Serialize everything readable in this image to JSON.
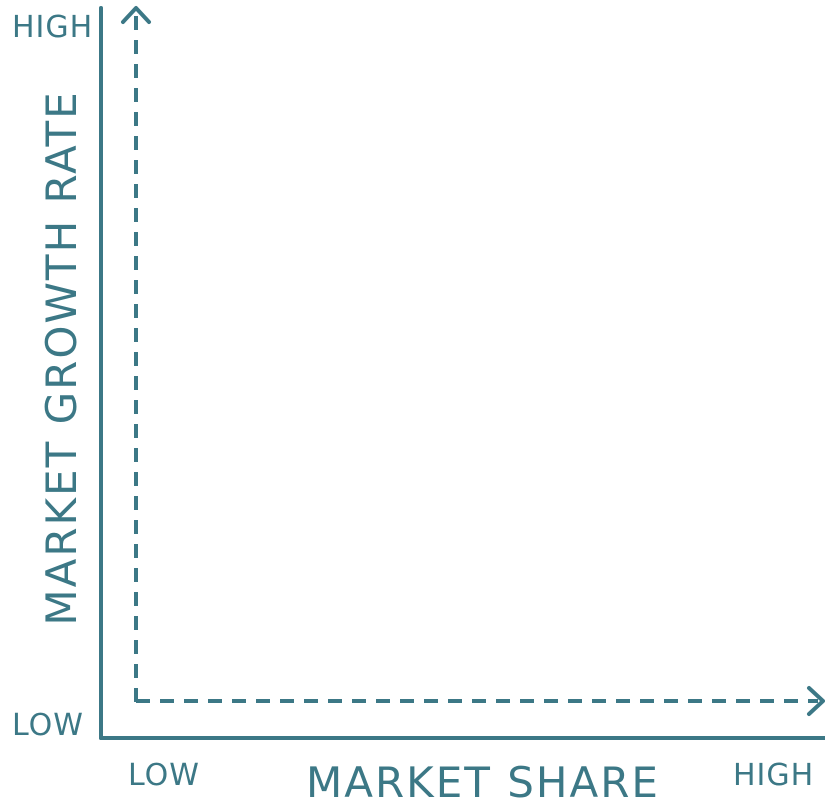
{
  "diagram": {
    "y_axis": {
      "title": "MARKET GROWTH RATE",
      "high_label": "HIGH",
      "low_label": "LOW"
    },
    "x_axis": {
      "title": "MARKET SHARE",
      "low_label": "LOW",
      "high_label": "HIGH"
    },
    "colors": {
      "ink": "#3c7886"
    }
  }
}
